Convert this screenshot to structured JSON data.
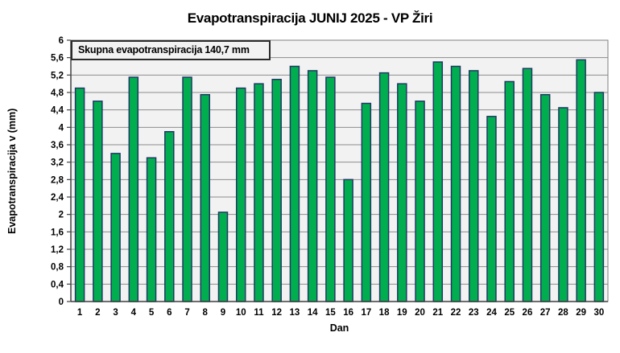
{
  "chart_data": {
    "type": "bar",
    "title": "Evapotranspiracija  JUNIJ 2025 - VP Žiri",
    "annotation": "Skupna evapotranspiracija  140,7 mm",
    "xlabel": "Dan",
    "ylabel": "Evapotranspiracija v  (mm)",
    "categories": [
      "1",
      "2",
      "3",
      "4",
      "5",
      "6",
      "7",
      "8",
      "9",
      "10",
      "11",
      "12",
      "13",
      "14",
      "15",
      "16",
      "17",
      "18",
      "19",
      "20",
      "21",
      "22",
      "23",
      "24",
      "25",
      "26",
      "27",
      "28",
      "29",
      "30"
    ],
    "values": [
      4.9,
      4.6,
      3.4,
      5.15,
      3.3,
      3.9,
      5.15,
      4.75,
      2.05,
      4.9,
      5.0,
      5.1,
      5.4,
      5.3,
      5.15,
      2.8,
      4.55,
      5.25,
      5.0,
      4.6,
      5.5,
      5.4,
      5.3,
      4.25,
      5.05,
      5.35,
      4.75,
      4.45,
      5.55,
      4.8
    ],
    "total_label_value": "140,7 mm",
    "ylim": [
      0,
      6
    ],
    "ytick_step": 0.4,
    "ytick_labels": [
      "0",
      "0,4",
      "0,8",
      "1,2",
      "1,6",
      "2",
      "2,4",
      "2,8",
      "3,2",
      "3,6",
      "4",
      "4,4",
      "4,8",
      "5,2",
      "5,6",
      "6"
    ],
    "grid": true,
    "legend": "none",
    "colors": {
      "bar_fill": "#00AE50",
      "bar_border": "#203864",
      "plot_bg": "#f2f2f2",
      "gridline": "#8c8c8c",
      "axis": "#404040",
      "plot_border": "#7f7f7f",
      "text": "#000000"
    }
  }
}
